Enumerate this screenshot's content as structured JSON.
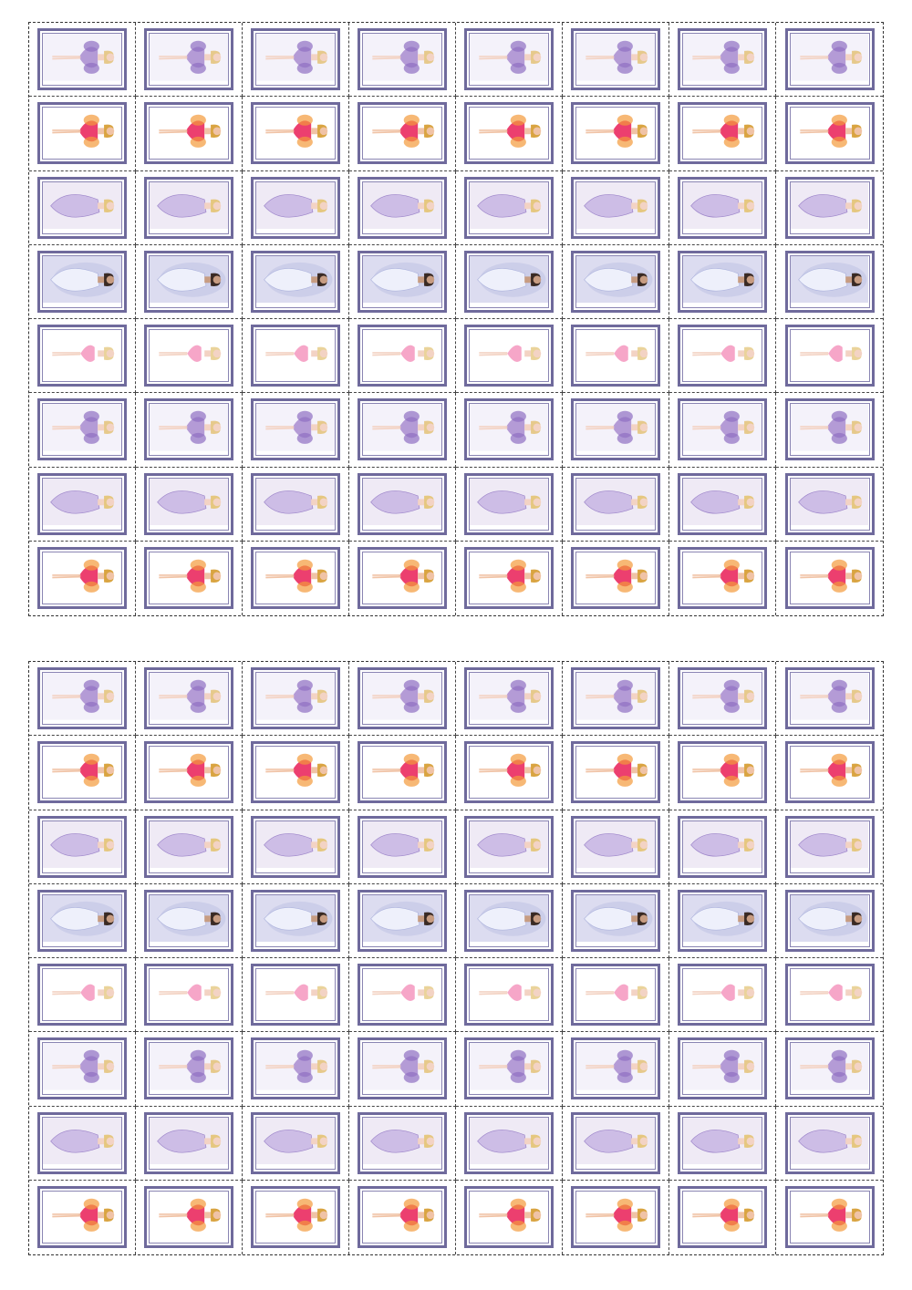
{
  "sheets": [
    {
      "id": "top",
      "rows": [
        "lilac-fairy",
        "pink-fairy",
        "lavender-gown",
        "bride-dark-hair",
        "pink-ballerina",
        "lilac-fairy",
        "lavender-gown",
        "pink-fairy"
      ]
    },
    {
      "id": "bottom",
      "rows": [
        "lilac-fairy",
        "pink-fairy",
        "lavender-gown",
        "bride-dark-hair",
        "pink-ballerina",
        "lilac-fairy",
        "lavender-gown",
        "pink-fairy"
      ]
    }
  ],
  "columns_per_row": 8,
  "variants": {
    "lilac-fairy": {
      "bg": "#f4f2fa",
      "dress": "#b49bd6",
      "accent": "#8e6fc2",
      "hair": "#e6c98b",
      "skin": "#f3d3c4"
    },
    "pink-fairy": {
      "bg": "#ffffff",
      "dress": "#ec3f6f",
      "accent": "#f39a3a",
      "hair": "#d9a441",
      "skin": "#f0c3a6"
    },
    "lavender-gown": {
      "bg": "#efeaf5",
      "dress": "#cdbde6",
      "accent": "#9c84c9",
      "hair": "#e5c77f",
      "skin": "#f3d3c4"
    },
    "bride-dark-hair": {
      "bg": "#dcdcf0",
      "dress": "#eef0fb",
      "accent": "#aeb4dd",
      "hair": "#3a2a24",
      "skin": "#c79c82"
    },
    "pink-ballerina": {
      "bg": "#ffffff",
      "dress": "#f6a6c8",
      "accent": "#f07fb0",
      "hair": "#ead39a",
      "skin": "#f3d3c4"
    }
  },
  "frame_color": "#6f6a9c"
}
